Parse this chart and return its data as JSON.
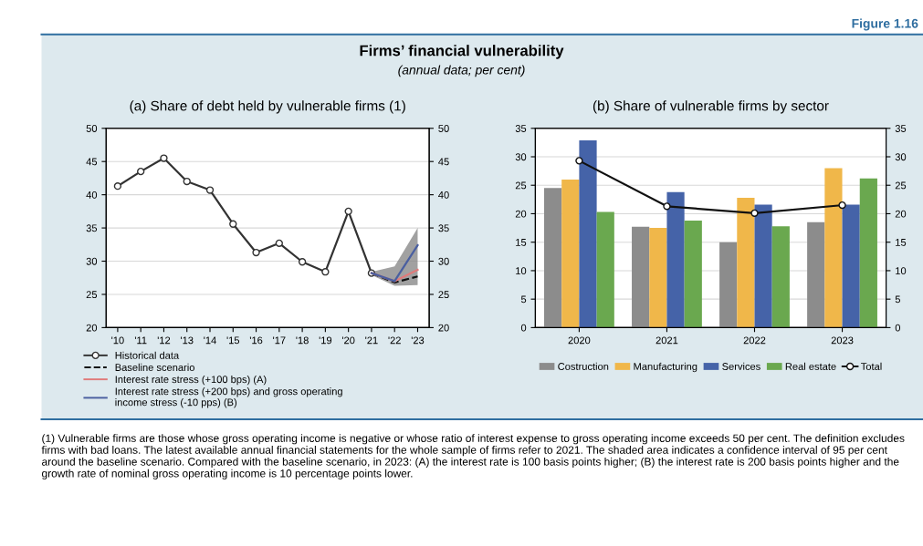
{
  "chart_data": [
    {
      "type": "line",
      "title": "(a) Share of debt held by vulnerable firms (1)",
      "categories": [
        "'10",
        "'11",
        "'12",
        "'13",
        "'14",
        "'15",
        "'16",
        "'17",
        "'18",
        "'19",
        "'20",
        "'21",
        "'22",
        "'23"
      ],
      "series": [
        {
          "name": "Historical data",
          "color": "#333333",
          "marker": "circle",
          "line_style": "solid",
          "values": [
            41.3,
            43.5,
            45.5,
            42.0,
            40.7,
            35.6,
            31.3,
            32.7,
            29.9,
            28.4,
            37.5,
            28.2,
            null,
            null
          ]
        },
        {
          "name": "Baseline scenario",
          "color": "#111111",
          "marker": "none",
          "line_style": "dashed",
          "values": [
            null,
            null,
            null,
            null,
            null,
            null,
            null,
            null,
            null,
            null,
            null,
            28.2,
            26.8,
            27.7
          ],
          "lower": [
            null,
            null,
            null,
            null,
            null,
            null,
            null,
            null,
            null,
            null,
            null,
            27.9,
            26.3,
            26.4
          ],
          "upper": [
            null,
            null,
            null,
            null,
            null,
            null,
            null,
            null,
            null,
            null,
            null,
            28.4,
            29.2,
            35.0
          ]
        },
        {
          "name": "Interest rate stress (+100 bps) (A)",
          "color": "#e07a7a",
          "marker": "none",
          "line_style": "solid",
          "values": [
            null,
            null,
            null,
            null,
            null,
            null,
            null,
            null,
            null,
            null,
            null,
            28.2,
            27.0,
            28.7
          ]
        },
        {
          "name": "Interest rate stress (+200 bps) and gross operating\nincome stress (-10 pps) (B)",
          "color": "#4a5fa0",
          "marker": "none",
          "line_style": "solid",
          "values": [
            null,
            null,
            null,
            null,
            null,
            null,
            null,
            null,
            null,
            null,
            null,
            28.2,
            27.0,
            32.4
          ]
        }
      ],
      "ylim": [
        20,
        50
      ],
      "yticks": [
        20,
        25,
        30,
        35,
        40,
        45,
        50
      ],
      "y2lim": [
        20,
        50
      ],
      "y2ticks": [
        20,
        25,
        30,
        35,
        40,
        45,
        50
      ],
      "grid": "y",
      "legend": "bottom left",
      "annotations": [
        "Firms’ financial vulnerability",
        "(annual data; per cent)",
        "Figure 1.16",
        "(1) Vulnerable firms are those whose gross operating income is negative or whose ratio of interest expense to gross operating income exceeds 50 per cent. The definition excludes firms with bad loans. The latest available annual financial statements for the whole sample of firms refer to 2021. The shaded area indicates a confidence interval of 95 per cent around the baseline scenario. Compared with the baseline scenario, in 2023: (A) the interest rate is 100 basis points higher; (B) the interest rate is 200 basis points higher and the growth rate of nominal gross operating income is 10 percentage points lower."
      ]
    },
    {
      "type": "bar",
      "title": "(b) Share of vulnerable firms by sector",
      "categories": [
        "2020",
        "2021",
        "2022",
        "2023"
      ],
      "series": [
        {
          "name": "Costruction",
          "color": "#8c8c8c",
          "values": [
            24.5,
            17.7,
            15.0,
            18.5
          ]
        },
        {
          "name": "Manufacturing",
          "color": "#f0b74a",
          "values": [
            26.0,
            17.5,
            22.8,
            28.0
          ]
        },
        {
          "name": "Services",
          "color": "#4563a8",
          "values": [
            32.9,
            23.8,
            21.6,
            21.6
          ]
        },
        {
          "name": "Real estate",
          "color": "#6aa84f",
          "values": [
            20.3,
            18.8,
            17.8,
            26.2
          ]
        },
        {
          "name": "Total",
          "type": "line",
          "color": "#111111",
          "marker": "circle",
          "line_style": "solid",
          "values": [
            29.3,
            21.3,
            20.1,
            21.5
          ]
        }
      ],
      "ylim": [
        0,
        35
      ],
      "yticks": [
        0,
        5,
        10,
        15,
        20,
        25,
        30,
        35
      ],
      "y2lim": [
        0,
        35
      ],
      "y2ticks": [
        0,
        5,
        10,
        15,
        20,
        25,
        30,
        35
      ],
      "grid": "y",
      "legend": "bottom"
    }
  ]
}
